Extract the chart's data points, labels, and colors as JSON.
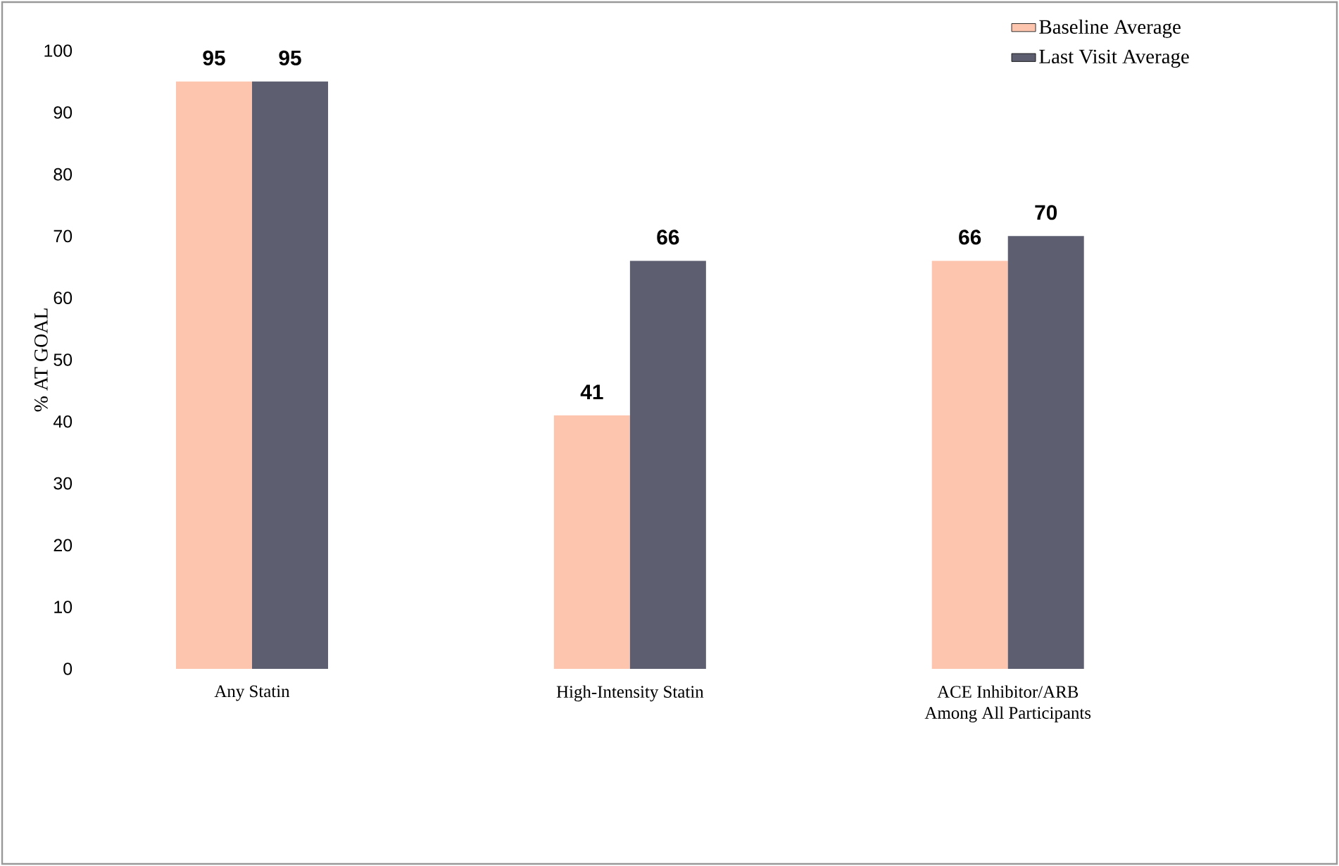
{
  "chart_data": {
    "type": "bar",
    "ylabel": "% AT GOAL",
    "categories": [
      "Any Statin",
      "High-Intensity Statin",
      "ACE Inhibitor/ARB\nAmong All Participants"
    ],
    "series": [
      {
        "name": "Baseline Average",
        "color": "#fdc5ae",
        "values": [
          95,
          41,
          66
        ]
      },
      {
        "name": "Last Visit Average",
        "color": "#5d5f70",
        "values": [
          95,
          66,
          70
        ]
      }
    ],
    "ylim": [
      0,
      100
    ],
    "yticks": [
      0,
      10,
      20,
      30,
      40,
      50,
      60,
      70,
      80,
      90,
      100
    ],
    "data_labels": true,
    "legend": "top right",
    "grid": false
  }
}
